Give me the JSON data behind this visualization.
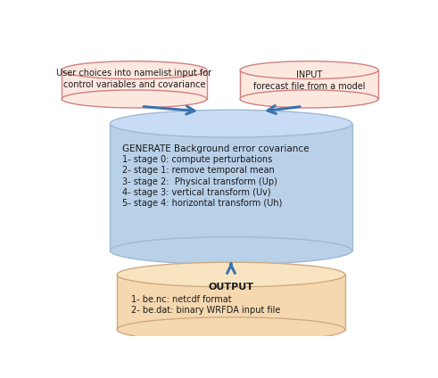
{
  "bg_color": "#ffffff",
  "cylinder_blue_face": "#b8d0e8",
  "cylinder_blue_edge": "#a0b8d0",
  "cylinder_blue_top": "#c8ddf5",
  "cylinder_blue_shade": "#a8c4e0",
  "cylinder_orange_face": "#f5d8b0",
  "cylinder_orange_edge": "#d0aa80",
  "cylinder_orange_top": "#f8e4c0",
  "box_fill": "#fde8e0",
  "box_edge": "#d08080",
  "arrow_color": "#3a72b0",
  "text_color": "#1a1a1a",
  "title_fontsize": 7.5,
  "body_fontsize": 7.0,
  "box_left_text_line1": "User choices into namelist.input for",
  "box_left_text_line2": "control variables and covariance",
  "box_right_line1": "INPUT",
  "box_right_line2": "forecast file from a model",
  "generate_title": "GENERATE Background error covariance",
  "generate_lines": [
    "1- stage 0: compute perturbations",
    "2- stage 1: remove temporal mean",
    "3- stage 2:  Physical transform (Up)",
    "4- stage 3: vertical transform (Uv)",
    "5- stage 4: horizontal transform (Uh)"
  ],
  "output_title": "OUTPUT",
  "output_lines": [
    "1- be.nc: netcdf format",
    "2- be.dat: binary WRFDA input file"
  ]
}
